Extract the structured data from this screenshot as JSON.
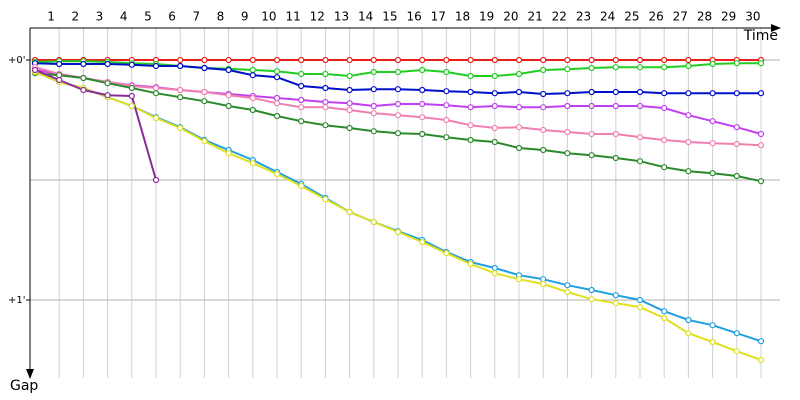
{
  "chart_data": {
    "type": "line",
    "x_label": "Time",
    "y_label": "Gap",
    "x": [
      0,
      1,
      2,
      3,
      4,
      5,
      6,
      7,
      8,
      9,
      10,
      11,
      12,
      13,
      14,
      15,
      16,
      17,
      18,
      19,
      20,
      21,
      22,
      23,
      24,
      25,
      26,
      27,
      28,
      29,
      30
    ],
    "xlim": [
      0,
      31
    ],
    "xticks": [
      1,
      2,
      3,
      4,
      5,
      6,
      7,
      8,
      9,
      10,
      11,
      12,
      13,
      14,
      15,
      16,
      17,
      18,
      19,
      20,
      21,
      22,
      23,
      24,
      25,
      26,
      27,
      28,
      29,
      30
    ],
    "ylim": [
      -8,
      82
    ],
    "yticks": [
      {
        "value": 0,
        "label": "+0'"
      },
      {
        "value": 60,
        "label": "+1'"
      }
    ],
    "ygrid": [
      0,
      30,
      60
    ],
    "grid": true,
    "series": [
      {
        "color": "#e8201c",
        "values": [
          0,
          0,
          0,
          0,
          0,
          0,
          0,
          0,
          0,
          0,
          0,
          0,
          0,
          0,
          0,
          0,
          0,
          0,
          0,
          0,
          0,
          0,
          0,
          0,
          0,
          0,
          0,
          0,
          0,
          0,
          0
        ]
      },
      {
        "color": "#22cc22",
        "values": [
          0.5,
          0.3,
          0.3,
          0.5,
          0.8,
          1,
          1.5,
          2,
          2.2,
          2.5,
          2.8,
          3.5,
          3.5,
          4,
          3,
          3,
          2.5,
          3,
          4,
          4,
          3.5,
          2.5,
          2.3,
          2,
          1.8,
          1.8,
          1.8,
          1.5,
          1,
          0.8,
          0.8
        ]
      },
      {
        "color": "#0010c8",
        "values": [
          0.8,
          1,
          1,
          1,
          1.2,
          1.5,
          1.5,
          2,
          2.5,
          3.8,
          4.3,
          6.5,
          7,
          7.5,
          7.3,
          7.3,
          7.5,
          7.8,
          8,
          8.3,
          8,
          8.5,
          8.3,
          8,
          8,
          8,
          8.3,
          8.3,
          8.3,
          8.3,
          8.3
        ]
      },
      {
        "color": "#c040f0",
        "values": [
          2.5,
          3.5,
          4.5,
          5.5,
          6.3,
          6.8,
          7.5,
          8,
          8.5,
          9,
          9.5,
          10,
          10.5,
          10.8,
          11.5,
          11,
          11,
          11.3,
          11.8,
          11.5,
          11.8,
          11.8,
          11.5,
          11.5,
          11.5,
          11.5,
          12,
          13.8,
          15.3,
          16.8,
          18.5
        ]
      },
      {
        "color": "#f080b0",
        "values": [
          1.8,
          3.5,
          4.5,
          5.5,
          6.5,
          7,
          7.5,
          8,
          8.8,
          9.5,
          10.8,
          11.8,
          11.8,
          12.5,
          13.3,
          13.8,
          14.3,
          15,
          16.3,
          17,
          16.8,
          17.5,
          18,
          18.5,
          18.5,
          19.3,
          20,
          20.5,
          20.8,
          21,
          21.3
        ]
      },
      {
        "color": "#2a8a2a",
        "values": [
          3.3,
          3.8,
          4.5,
          5.8,
          7,
          8.3,
          9.3,
          10.3,
          11.5,
          12.5,
          14,
          15.3,
          16.3,
          17,
          17.8,
          18.3,
          18.5,
          19.3,
          20,
          20.5,
          22,
          22.5,
          23.3,
          23.8,
          24.5,
          25.3,
          26.8,
          27.8,
          28.3,
          29,
          30.3
        ]
      },
      {
        "color": "#20a0e0",
        "values": [
          3,
          5.5,
          7,
          9.3,
          11.5,
          14.3,
          16.8,
          20,
          22.5,
          25,
          28,
          31,
          34.5,
          38,
          40.5,
          42.8,
          45,
          48,
          50.5,
          52,
          53.8,
          54.8,
          56.3,
          57.5,
          58.8,
          60,
          62.8,
          65,
          66.3,
          68.3,
          70.3
        ]
      },
      {
        "color": "#e0e020",
        "values": [
          3,
          5.5,
          7,
          9.3,
          11.5,
          14.5,
          17,
          20.3,
          23.3,
          25.8,
          28.5,
          31.5,
          34.8,
          38,
          40.5,
          43,
          45.5,
          48.3,
          51,
          53.3,
          54.8,
          56,
          58,
          59.8,
          60.8,
          61.8,
          64.5,
          68.3,
          70.5,
          72.8,
          75
        ]
      },
      {
        "color": "#8b2a9b",
        "values": [
          2.5,
          5,
          7.5,
          8.8,
          9,
          30,
          null,
          null,
          null,
          null,
          null,
          null,
          null,
          null,
          null,
          null,
          null,
          null,
          null,
          null,
          null,
          null,
          null,
          null,
          null,
          null,
          null,
          null,
          null,
          null,
          null
        ]
      }
    ]
  }
}
